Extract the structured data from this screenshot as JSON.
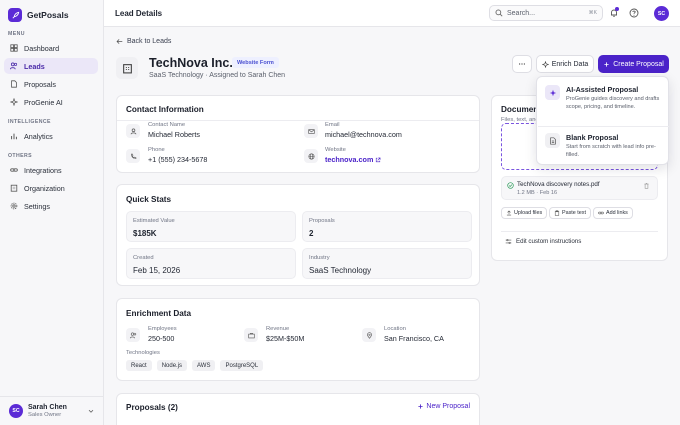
{
  "app": {
    "name": "GetPosals"
  },
  "sidebar": {
    "menu_label": "MENU",
    "intelligence_label": "INTELLIGENCE",
    "others_label": "OTHERS",
    "items": [
      {
        "label": "Dashboard"
      },
      {
        "label": "Leads"
      },
      {
        "label": "Proposals"
      },
      {
        "label": "ProGenie AI"
      },
      {
        "label": "Analytics"
      },
      {
        "label": "Integrations"
      },
      {
        "label": "Organization"
      },
      {
        "label": "Settings"
      }
    ],
    "user": {
      "initials": "SC",
      "name": "Sarah Chen",
      "role": "Sales Owner"
    }
  },
  "header": {
    "title": "Lead Details",
    "search_placeholder": "Search...",
    "search_shortcut": "⌘K",
    "avatar_initials": "SC"
  },
  "lead": {
    "back_label": "Back to Leads",
    "name": "TechNova Inc.",
    "badge": "Website Form",
    "subtitle": "SaaS Technology · Assigned to Sarah Chen"
  },
  "actions": {
    "enrich_label": "Enrich Data",
    "create_label": "Create Proposal"
  },
  "menu": {
    "items": [
      {
        "title": "AI-Assisted Proposal",
        "desc": "ProGenie guides discovery and drafts scope, pricing, and timeline."
      },
      {
        "title": "Blank Proposal",
        "desc": "Start from scratch with lead info pre-filled."
      }
    ]
  },
  "contact": {
    "title": "Contact Information",
    "name_label": "Contact Name",
    "name_value": "Michael Roberts",
    "email_label": "Email",
    "email_value": "michael@technova.com",
    "phone_label": "Phone",
    "phone_value": "+1 (555) 234-5678",
    "website_label": "Website",
    "website_value": "technova.com"
  },
  "stats": {
    "title": "Quick Stats",
    "items": [
      {
        "label": "Estimated Value",
        "value": "$185K"
      },
      {
        "label": "Proposals",
        "value": "2"
      },
      {
        "label": "Created",
        "value": "Feb 15, 2026"
      },
      {
        "label": "Industry",
        "value": "SaaS Technology"
      }
    ]
  },
  "enrichment": {
    "title": "Enrichment Data",
    "employees_label": "Employees",
    "employees_value": "250-500",
    "revenue_label": "Revenue",
    "revenue_value": "$25M-$50M",
    "location_label": "Location",
    "location_value": "San Francisco, CA",
    "tech_label": "Technologies",
    "tags": [
      "React",
      "Node.js",
      "AWS",
      "PostgreSQL"
    ]
  },
  "proposals": {
    "title": "Proposals (2)",
    "new_label": "New Proposal"
  },
  "documents": {
    "title": "Documents",
    "subtitle": "Files, text, and",
    "file_name": "TechNova discovery notes.pdf",
    "file_meta": "1.2 MB · Feb 16",
    "upload_label": "Upload files",
    "paste_label": "Paste text",
    "add_links_label": "Add links",
    "custom_label": "Edit custom instructions"
  },
  "colors": {
    "accent": "#4b23c9",
    "active_bg": "#ebe7f8"
  }
}
